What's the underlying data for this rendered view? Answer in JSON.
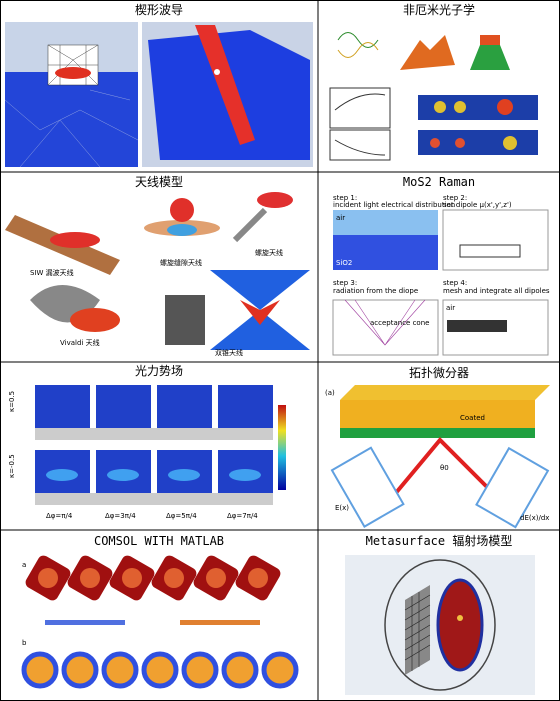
{
  "cells": [
    {
      "title": "楔形波导"
    },
    {
      "title": "非厄米光子学"
    },
    {
      "title": "天线模型",
      "labels": [
        "SIW 漏波天线",
        "螺旋缝隙天线",
        "螺旋天线",
        "Vivaldi 天线",
        "双锥天线"
      ]
    },
    {
      "title": "MoS2 Raman",
      "labels": [
        "step 1:",
        "incident light electrical distribution",
        "air",
        "SiO2",
        "step 2:",
        "set dipole μ(x',y',z')",
        "step 3:",
        "radiation from the diope",
        "acceptance cone",
        "step 4:",
        "mesh and integrate all dipoles",
        "air"
      ]
    },
    {
      "title": "光力势场",
      "labels": [
        "κ=0.5",
        "κ=-0.5",
        "Δφ=π/4",
        "Δφ=3π/4",
        "Δφ=5π/4",
        "Δφ=7π/4"
      ]
    },
    {
      "title": "拓扑微分器",
      "labels": [
        "(a)",
        "Coated",
        "θ0",
        "E(x)",
        "dE(x)/dx"
      ]
    },
    {
      "title": "COMSOL WITH MATLAB",
      "labels": [
        "a",
        "b"
      ]
    },
    {
      "title": "Metasurface 辐射场模型"
    }
  ]
}
